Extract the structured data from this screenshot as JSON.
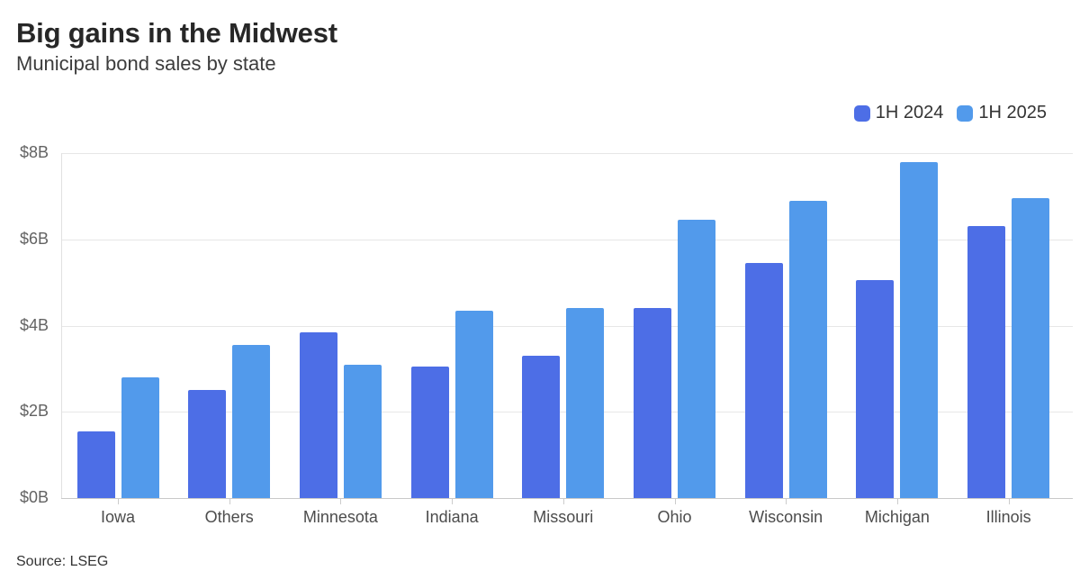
{
  "header": {
    "title": "Big gains in the Midwest",
    "subtitle": "Municipal bond sales by state"
  },
  "legend": [
    {
      "label": "1H 2024",
      "color": "#4d6ee6"
    },
    {
      "label": "1H 2025",
      "color": "#529aeb"
    }
  ],
  "source": "Source: LSEG",
  "chart_data": {
    "type": "bar",
    "title": "Big gains in the Midwest",
    "subtitle": "Municipal bond sales by state",
    "categories": [
      "Iowa",
      "Others",
      "Minnesota",
      "Indiana",
      "Missouri",
      "Ohio",
      "Wisconsin",
      "Michigan",
      "Illinois"
    ],
    "series": [
      {
        "name": "1H 2024",
        "color": "#4d6ee6",
        "values": [
          1.55,
          2.5,
          3.85,
          3.05,
          3.3,
          4.4,
          5.45,
          5.05,
          6.3
        ]
      },
      {
        "name": "1H 2025",
        "color": "#529aeb",
        "values": [
          2.8,
          3.55,
          3.1,
          4.35,
          4.4,
          6.45,
          6.9,
          7.8,
          6.95
        ]
      }
    ],
    "unit": "billions USD",
    "ylabel": "",
    "xlabel": "",
    "ylim": [
      0,
      8
    ],
    "ytick_values": [
      0,
      2,
      4,
      6,
      8
    ],
    "ytick_labels": [
      "$0B",
      "$2B",
      "$4B",
      "$6B",
      "$8B"
    ],
    "grid": true,
    "legend_position": "top-right"
  }
}
